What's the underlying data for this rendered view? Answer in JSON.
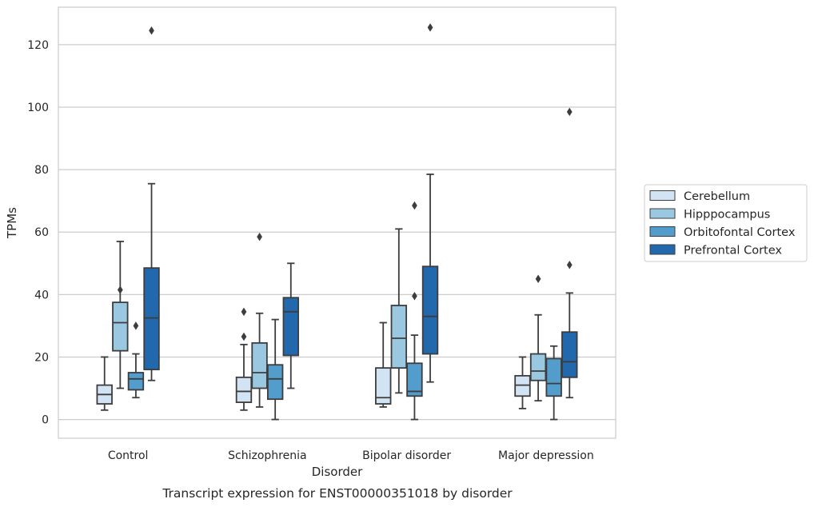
{
  "chart_data": {
    "type": "box",
    "title": "",
    "caption": "Transcript expression for ENST00000351018 by disorder",
    "xlabel": "Disorder",
    "ylabel": "TPMs",
    "ylim": [
      -6,
      132
    ],
    "yticks": [
      0,
      20,
      40,
      60,
      80,
      100,
      120
    ],
    "grid": "horizontal",
    "legend_position": "right",
    "categories": [
      "Control",
      "Schizophrenia",
      "Bipolar disorder",
      "Major depression"
    ],
    "series": [
      {
        "name": "Cerebellum",
        "color": "#d2e3f3",
        "boxes": [
          {
            "whisker_low": 3,
            "q1": 5,
            "median": 8,
            "q3": 11,
            "whisker_high": 20,
            "outliers": []
          },
          {
            "whisker_low": 3,
            "q1": 5.5,
            "median": 9,
            "q3": 13.5,
            "whisker_high": 24,
            "outliers": [
              26.5,
              34.5
            ]
          },
          {
            "whisker_low": 4,
            "q1": 5,
            "median": 7,
            "q3": 16.5,
            "whisker_high": 31,
            "outliers": []
          },
          {
            "whisker_low": 3.5,
            "q1": 7.5,
            "median": 11,
            "q3": 14,
            "whisker_high": 20,
            "outliers": []
          }
        ]
      },
      {
        "name": "Hipppocampus",
        "color": "#9ac8e0",
        "boxes": [
          {
            "whisker_low": 10,
            "q1": 22,
            "median": 31,
            "q3": 37.5,
            "whisker_high": 57,
            "outliers": [
              41.5
            ]
          },
          {
            "whisker_low": 4,
            "q1": 10,
            "median": 15,
            "q3": 24.5,
            "whisker_high": 34,
            "outliers": [
              58.5
            ]
          },
          {
            "whisker_low": 8.5,
            "q1": 16.5,
            "median": 26,
            "q3": 36.5,
            "whisker_high": 61,
            "outliers": []
          },
          {
            "whisker_low": 6,
            "q1": 12.5,
            "median": 15.5,
            "q3": 21,
            "whisker_high": 33.5,
            "outliers": [
              45
            ]
          }
        ]
      },
      {
        "name": "Orbitofontal Cortex",
        "color": "#529dcc",
        "boxes": [
          {
            "whisker_low": 7,
            "q1": 9.5,
            "median": 13,
            "q3": 15,
            "whisker_high": 21,
            "outliers": [
              30
            ]
          },
          {
            "whisker_low": 0,
            "q1": 6.5,
            "median": 13,
            "q3": 17.5,
            "whisker_high": 32,
            "outliers": []
          },
          {
            "whisker_low": 0,
            "q1": 7.5,
            "median": 9,
            "q3": 18,
            "whisker_high": 27,
            "outliers": [
              39.5,
              68.5
            ]
          },
          {
            "whisker_low": 0,
            "q1": 7.5,
            "median": 11.5,
            "q3": 19.5,
            "whisker_high": 23.5,
            "outliers": []
          }
        ]
      },
      {
        "name": "Prefrontal Cortex",
        "color": "#2268ad",
        "boxes": [
          {
            "whisker_low": 12.5,
            "q1": 16,
            "median": 32.5,
            "q3": 48.5,
            "whisker_high": 75.5,
            "outliers": [
              124.5
            ]
          },
          {
            "whisker_low": 10,
            "q1": 20.5,
            "median": 34.5,
            "q3": 39,
            "whisker_high": 50,
            "outliers": []
          },
          {
            "whisker_low": 12,
            "q1": 21,
            "median": 33,
            "q3": 49,
            "whisker_high": 78.5,
            "outliers": [
              125.5
            ]
          },
          {
            "whisker_low": 7,
            "q1": 13.5,
            "median": 18.5,
            "q3": 28,
            "whisker_high": 40.5,
            "outliers": [
              49.5,
              98.5
            ]
          }
        ]
      }
    ]
  }
}
